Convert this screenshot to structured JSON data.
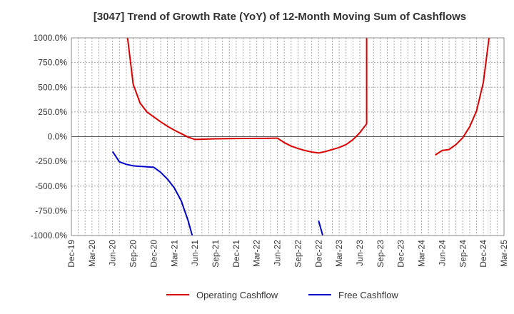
{
  "chart_data": {
    "type": "line",
    "title": "[3047]  Trend of Growth Rate (YoY) of 12-Month Moving Sum of Cashflows",
    "xlabel": "",
    "ylabel": "",
    "ylim": [
      -1000,
      1000
    ],
    "y_ticks": [
      "1000.0%",
      "750.0%",
      "500.0%",
      "250.0%",
      "0.0%",
      "-250.0%",
      "-500.0%",
      "-750.0%",
      "-1000.0%"
    ],
    "x_ticks": [
      "Dec-19",
      "Mar-20",
      "Jun-20",
      "Sep-20",
      "Dec-20",
      "Mar-21",
      "Jun-21",
      "Sep-21",
      "Dec-21",
      "Mar-22",
      "Jun-22",
      "Sep-22",
      "Dec-22",
      "Mar-23",
      "Jun-23",
      "Sep-23",
      "Dec-23",
      "Mar-24",
      "Jun-24",
      "Sep-24",
      "Dec-24",
      "Mar-25"
    ],
    "grid": true,
    "legend_position": "bottom",
    "series": [
      {
        "name": "Operating Cashflow",
        "color": "#dd0000",
        "points": [
          [
            "2020-08",
            1100
          ],
          [
            "2020-09",
            530
          ],
          [
            "2020-10",
            340
          ],
          [
            "2020-11",
            250
          ],
          [
            "2020-12",
            200
          ],
          [
            "2021-01",
            150
          ],
          [
            "2021-02",
            105
          ],
          [
            "2021-03",
            65
          ],
          [
            "2021-04",
            30
          ],
          [
            "2021-05",
            -5
          ],
          [
            "2021-06",
            -28
          ],
          [
            "2021-07",
            -26
          ],
          [
            "2021-08",
            -24
          ],
          [
            "2021-09",
            -22
          ],
          [
            "2021-10",
            -21
          ],
          [
            "2021-11",
            -20
          ],
          [
            "2021-12",
            -19
          ],
          [
            "2022-01",
            -18
          ],
          [
            "2022-02",
            -18
          ],
          [
            "2022-03",
            -17
          ],
          [
            "2022-04",
            -17
          ],
          [
            "2022-05",
            -16
          ],
          [
            "2022-06",
            -15
          ],
          [
            "2022-07",
            -60
          ],
          [
            "2022-08",
            -95
          ],
          [
            "2022-09",
            -120
          ],
          [
            "2022-10",
            -140
          ],
          [
            "2022-11",
            -155
          ],
          [
            "2022-12",
            -165
          ],
          [
            "2023-01",
            -150
          ],
          [
            "2023-02",
            -130
          ],
          [
            "2023-03",
            -110
          ],
          [
            "2023-04",
            -80
          ],
          [
            "2023-05",
            -30
          ],
          [
            "2023-06",
            40
          ],
          [
            "2023-07",
            130
          ],
          [
            "2023-07",
            1100
          ]
        ],
        "points_2": [
          [
            "2024-05",
            -185
          ],
          [
            "2024-06",
            -140
          ],
          [
            "2024-07",
            -130
          ],
          [
            "2024-08",
            -80
          ],
          [
            "2024-09",
            -10
          ],
          [
            "2024-10",
            100
          ],
          [
            "2024-11",
            260
          ],
          [
            "2024-12",
            550
          ],
          [
            "2025-01",
            1100
          ]
        ]
      },
      {
        "name": "Free Cashflow",
        "color": "#0000cc",
        "points": [
          [
            "2020-06",
            -150
          ],
          [
            "2020-07",
            -255
          ],
          [
            "2020-08",
            -280
          ],
          [
            "2020-09",
            -295
          ],
          [
            "2020-10",
            -300
          ],
          [
            "2020-11",
            -305
          ],
          [
            "2020-12",
            -310
          ],
          [
            "2021-01",
            -360
          ],
          [
            "2021-02",
            -430
          ],
          [
            "2021-03",
            -520
          ],
          [
            "2021-04",
            -650
          ],
          [
            "2021-05",
            -850
          ],
          [
            "2021-06",
            -1100
          ]
        ],
        "points_2": [
          [
            "2022-12",
            -850
          ],
          [
            "2023-01",
            -1100
          ]
        ]
      }
    ]
  }
}
